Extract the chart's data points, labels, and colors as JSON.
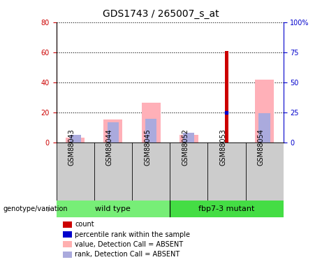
{
  "title": "GDS1743 / 265007_s_at",
  "samples": [
    "GSM88043",
    "GSM88044",
    "GSM88045",
    "GSM88052",
    "GSM88053",
    "GSM88054"
  ],
  "value_pink": [
    3.5,
    15.5,
    26.5,
    5.5,
    0,
    42.0
  ],
  "rank_blue_light": [
    5.5,
    13.5,
    16.0,
    6.5,
    0,
    19.5
  ],
  "count_red": [
    0,
    0,
    0,
    0,
    61.0,
    0
  ],
  "percentile_blue": [
    0,
    0,
    0,
    0,
    25.0,
    0
  ],
  "ylim_left": [
    0,
    80
  ],
  "ylim_right": [
    0,
    100
  ],
  "yticks_left": [
    0,
    20,
    40,
    60,
    80
  ],
  "yticks_right": [
    0,
    25,
    50,
    75,
    100
  ],
  "yticklabels_right": [
    "0",
    "25",
    "50",
    "75",
    "100%"
  ],
  "left_axis_color": "#cc0000",
  "right_axis_color": "#0000cc",
  "pink_bar_width": 0.5,
  "blue_bar_width": 0.3,
  "red_bar_width": 0.1,
  "legend_labels": [
    "count",
    "percentile rank within the sample",
    "value, Detection Call = ABSENT",
    "rank, Detection Call = ABSENT"
  ],
  "legend_colors": [
    "#cc0000",
    "#0000cc",
    "#ffb0b0",
    "#aaaadd"
  ],
  "group1_label": "wild type",
  "group2_label": "fbp7-3 mutant",
  "group1_color": "#77ee77",
  "group2_color": "#44dd44",
  "sample_bg_color": "#cccccc",
  "title_fontsize": 10,
  "tick_fontsize": 7,
  "label_fontsize": 7,
  "legend_fontsize": 7
}
